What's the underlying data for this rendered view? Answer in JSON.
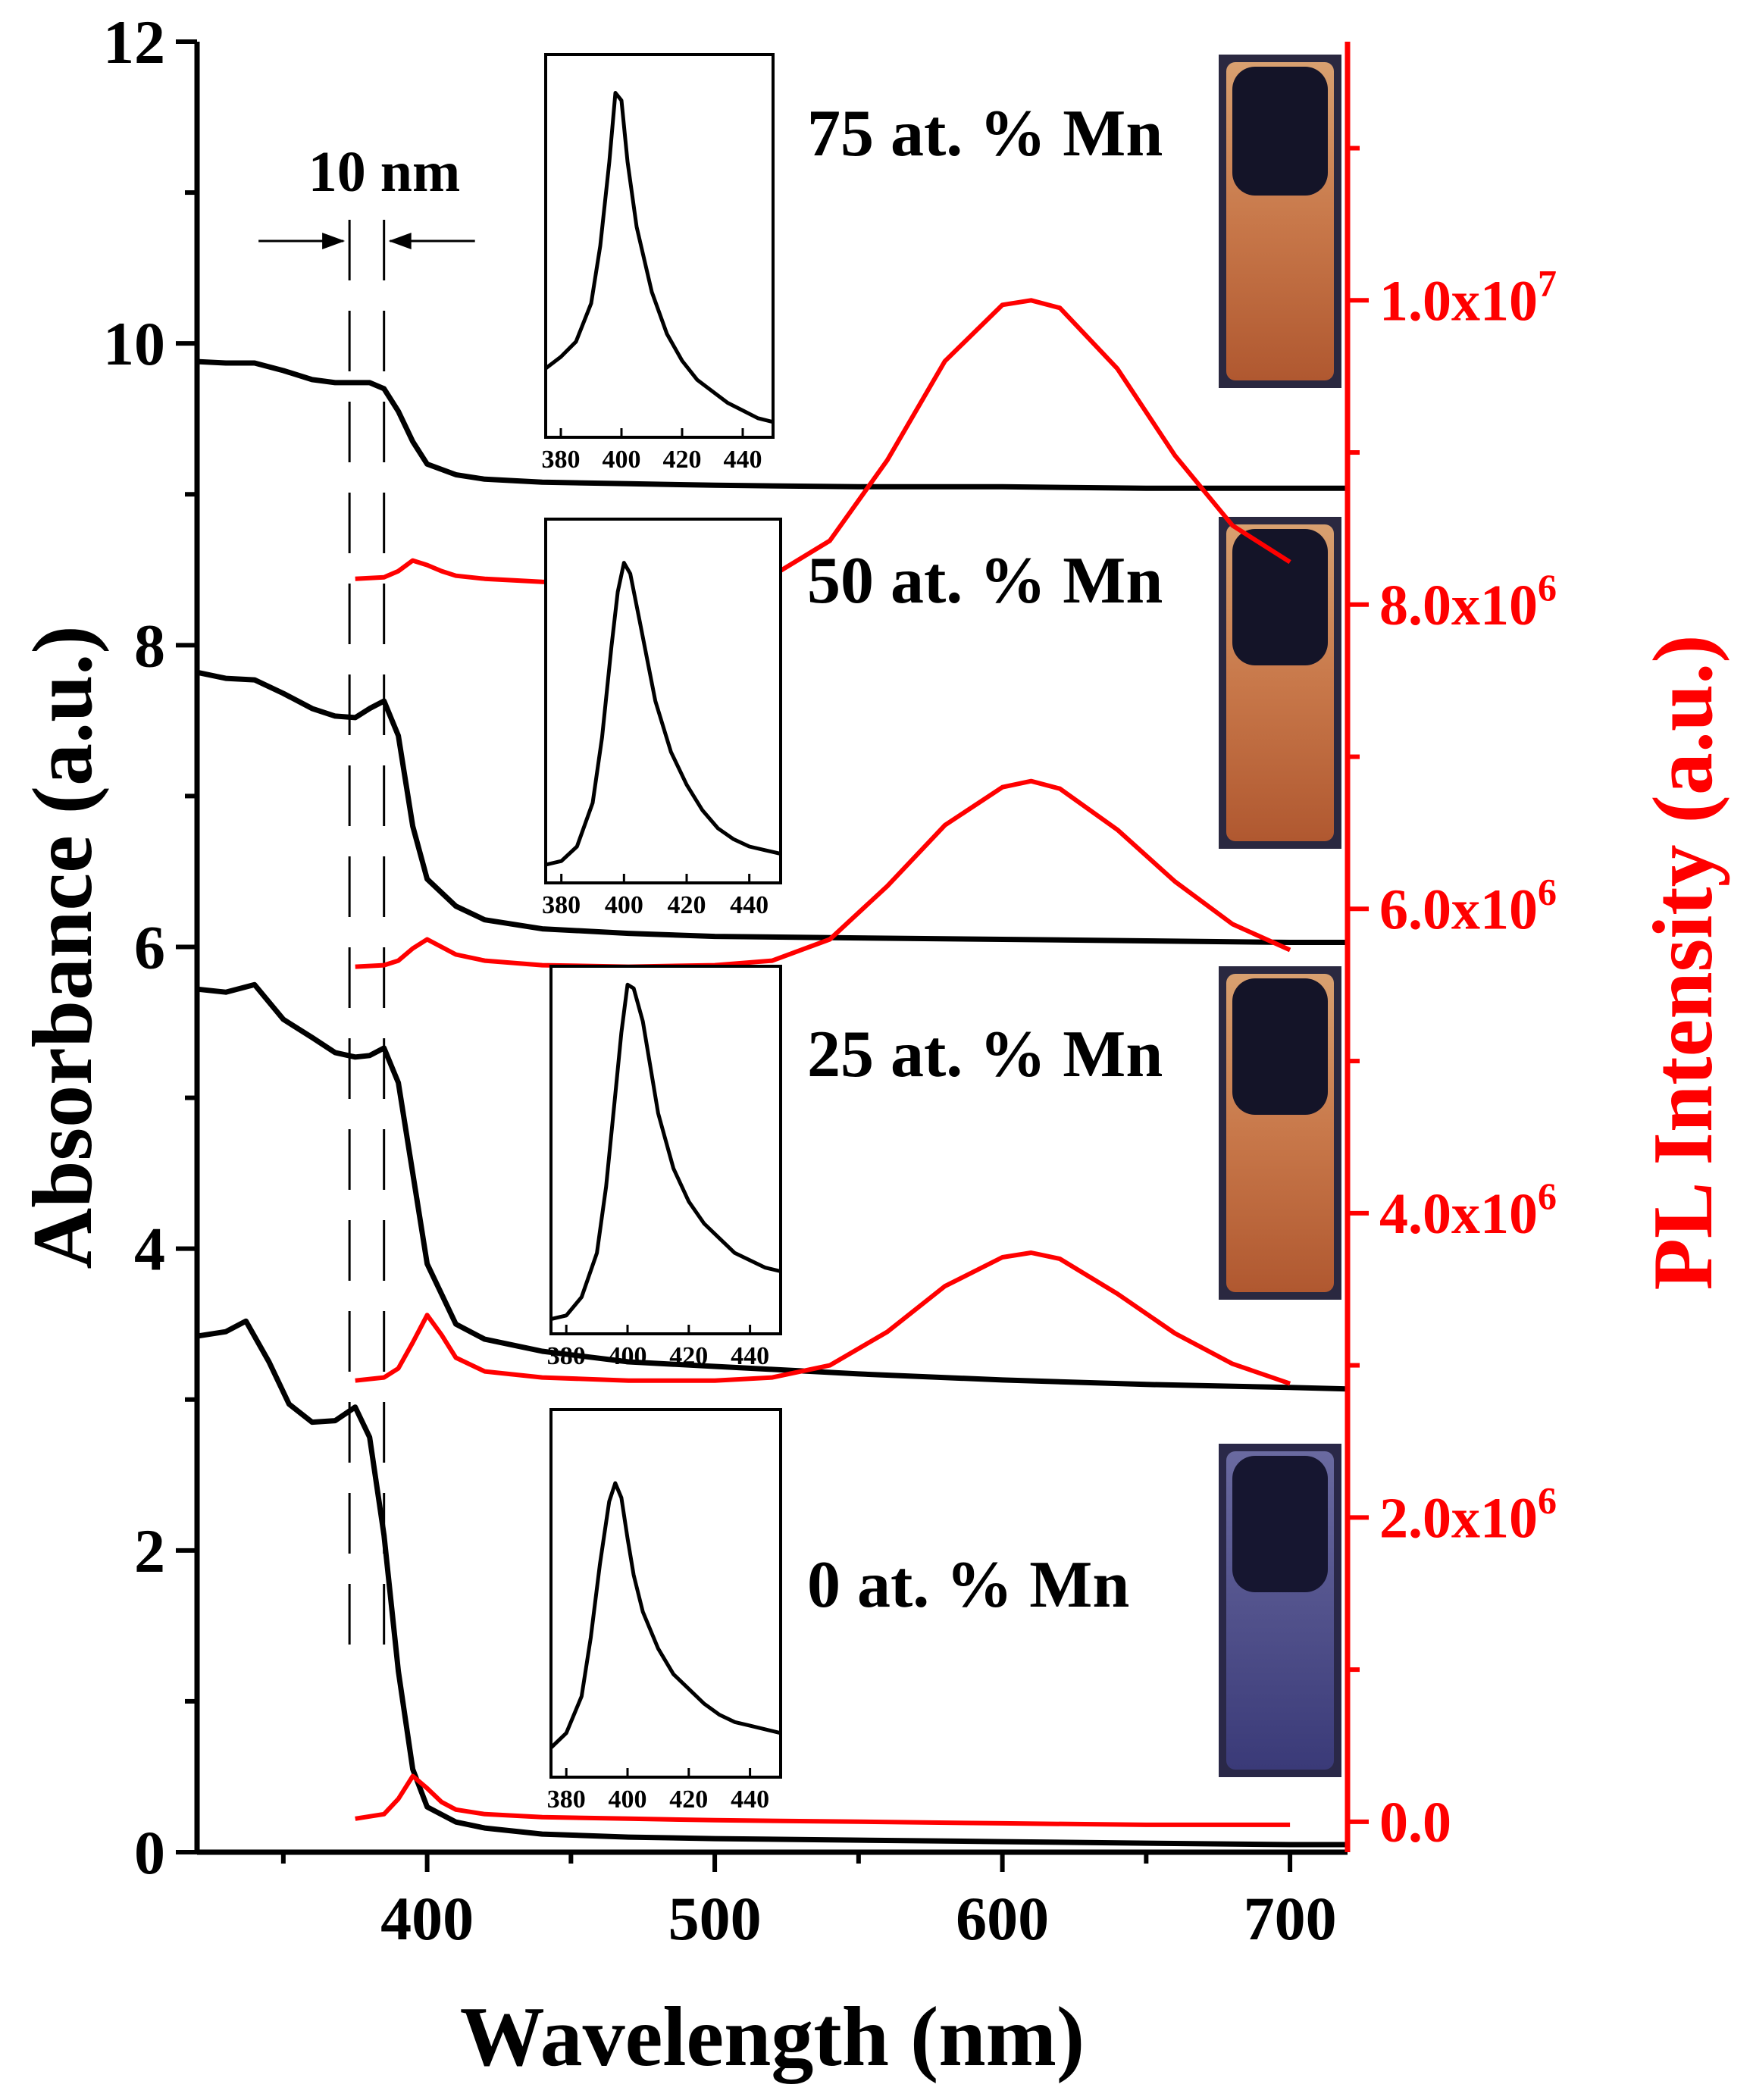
{
  "chart_data": {
    "type": "line",
    "xlabel": "Wavelength (nm)",
    "ylabel_left": "Absorbance (a.u.)",
    "ylabel_right": "PL Intensity (a.u.)",
    "xlim": [
      320,
      720
    ],
    "ylim_left": [
      0,
      12
    ],
    "ylim_right": [
      -200000,
      11700000
    ],
    "x_ticks": [
      400,
      500,
      600,
      700
    ],
    "x_tick_labels": [
      "400",
      "500",
      "600",
      "700"
    ],
    "y_left_ticks": [
      0,
      2,
      4,
      6,
      8,
      10,
      12
    ],
    "y_left_tick_labels": [
      "0",
      "2",
      "4",
      "6",
      "8",
      "10",
      "12"
    ],
    "y_right_ticks": [
      0,
      2000000,
      4000000,
      6000000,
      8000000,
      10000000
    ],
    "y_right_tick_labels": [
      {
        "mant": "0.0",
        "exp": ""
      },
      {
        "mant": "2.0x10",
        "exp": "6"
      },
      {
        "mant": "4.0x10",
        "exp": "6"
      },
      {
        "mant": "6.0x10",
        "exp": "6"
      },
      {
        "mant": "8.0x10",
        "exp": "6"
      },
      {
        "mant": "1.0x10",
        "exp": "7"
      }
    ],
    "colors": {
      "absorbance": "#000000",
      "pl": "#ff0000",
      "right_axis": "#ff0000"
    },
    "grid": false,
    "annotation_10nm": {
      "text": "10 nm",
      "x1": 373,
      "x2": 385
    },
    "series": [
      {
        "label": "0 at. % Mn",
        "absorbance": {
          "x": [
            320,
            330,
            337,
            345,
            352,
            360,
            368,
            375,
            380,
            385,
            390,
            395,
            400,
            410,
            420,
            440,
            470,
            500,
            550,
            600,
            650,
            700,
            720
          ],
          "y": [
            3.42,
            3.45,
            3.52,
            3.25,
            2.97,
            2.85,
            2.86,
            2.95,
            2.75,
            2.1,
            1.2,
            0.55,
            0.3,
            0.2,
            0.16,
            0.12,
            0.1,
            0.09,
            0.08,
            0.07,
            0.06,
            0.05,
            0.05
          ]
        },
        "pl": {
          "x": [
            375,
            385,
            390,
            395,
            400,
            405,
            410,
            420,
            440,
            470,
            500,
            550,
            600,
            650,
            700
          ],
          "y": [
            20000,
            50000,
            150000,
            300000,
            220000,
            130000,
            80000,
            50000,
            30000,
            20000,
            10000,
            0,
            -10000,
            -20000,
            -20000
          ]
        }
      },
      {
        "label": "25 at. % Mn",
        "absorbance": {
          "x": [
            320,
            330,
            340,
            350,
            360,
            368,
            375,
            380,
            385,
            390,
            395,
            400,
            410,
            420,
            440,
            470,
            500,
            550,
            600,
            650,
            700,
            720
          ],
          "y": [
            5.72,
            5.7,
            5.75,
            5.52,
            5.4,
            5.3,
            5.27,
            5.28,
            5.33,
            5.1,
            4.5,
            3.9,
            3.5,
            3.4,
            3.32,
            3.25,
            3.22,
            3.17,
            3.13,
            3.1,
            3.08,
            3.07
          ]
        },
        "pl": {
          "x": [
            375,
            385,
            390,
            395,
            400,
            405,
            410,
            420,
            440,
            470,
            500,
            520,
            540,
            560,
            580,
            600,
            610,
            620,
            640,
            660,
            680,
            700
          ],
          "y": [
            2900000,
            2920000,
            2980000,
            3150000,
            3330000,
            3200000,
            3050000,
            2960000,
            2920000,
            2900000,
            2900000,
            2920000,
            3000000,
            3220000,
            3520000,
            3710000,
            3740000,
            3700000,
            3470000,
            3210000,
            3010000,
            2880000
          ]
        }
      },
      {
        "label": "50 at. % Mn",
        "absorbance": {
          "x": [
            320,
            330,
            340,
            350,
            360,
            368,
            375,
            380,
            385,
            390,
            395,
            400,
            410,
            420,
            440,
            470,
            500,
            550,
            600,
            650,
            700,
            720
          ],
          "y": [
            7.82,
            7.78,
            7.77,
            7.68,
            7.58,
            7.53,
            7.52,
            7.58,
            7.63,
            7.4,
            6.8,
            6.45,
            6.27,
            6.18,
            6.12,
            6.09,
            6.07,
            6.06,
            6.05,
            6.04,
            6.03,
            6.03
          ]
        },
        "pl": {
          "x": [
            375,
            385,
            390,
            395,
            400,
            405,
            410,
            420,
            440,
            470,
            500,
            520,
            540,
            560,
            580,
            600,
            610,
            620,
            640,
            660,
            680,
            700
          ],
          "y": [
            5620000,
            5630000,
            5660000,
            5740000,
            5800000,
            5750000,
            5700000,
            5660000,
            5630000,
            5620000,
            5630000,
            5660000,
            5800000,
            6150000,
            6550000,
            6800000,
            6840000,
            6790000,
            6520000,
            6180000,
            5900000,
            5730000
          ]
        }
      },
      {
        "label": "75 at. % Mn",
        "absorbance": {
          "x": [
            320,
            330,
            340,
            350,
            360,
            368,
            375,
            380,
            385,
            390,
            395,
            400,
            410,
            420,
            440,
            470,
            500,
            550,
            600,
            650,
            700,
            720
          ],
          "y": [
            9.88,
            9.87,
            9.87,
            9.82,
            9.76,
            9.74,
            9.74,
            9.74,
            9.7,
            9.55,
            9.35,
            9.2,
            9.13,
            9.1,
            9.08,
            9.07,
            9.06,
            9.05,
            9.05,
            9.04,
            9.04,
            9.04
          ]
        },
        "pl": {
          "x": [
            375,
            385,
            390,
            395,
            400,
            405,
            410,
            420,
            440,
            470,
            500,
            520,
            540,
            560,
            580,
            600,
            610,
            620,
            640,
            660,
            680,
            700
          ],
          "y": [
            8170000,
            8180000,
            8220000,
            8290000,
            8260000,
            8220000,
            8190000,
            8170000,
            8150000,
            8140000,
            8140000,
            8190000,
            8420000,
            8950000,
            9600000,
            9970000,
            10000000,
            9950000,
            9550000,
            8980000,
            8520000,
            8280000
          ]
        }
      }
    ],
    "insets": [
      {
        "for": "75 at. % Mn",
        "xlim": [
          375,
          450
        ],
        "x_tick_labels": [
          "380",
          "400",
          "420",
          "440"
        ],
        "x": [
          375,
          380,
          385,
          390,
          393,
          396,
          398,
          400,
          402,
          405,
          410,
          415,
          420,
          425,
          430,
          435,
          440,
          445,
          450
        ],
        "y": [
          0.18,
          0.21,
          0.25,
          0.35,
          0.5,
          0.72,
          0.9,
          0.88,
          0.72,
          0.55,
          0.38,
          0.27,
          0.2,
          0.15,
          0.12,
          0.09,
          0.07,
          0.05,
          0.04
        ]
      },
      {
        "for": "50 at. % Mn",
        "xlim": [
          375,
          450
        ],
        "x_tick_labels": [
          "380",
          "400",
          "420",
          "440"
        ],
        "x": [
          375,
          380,
          385,
          390,
          393,
          396,
          398,
          400,
          402,
          405,
          410,
          415,
          420,
          425,
          430,
          435,
          440,
          445,
          450
        ],
        "y": [
          0.05,
          0.06,
          0.1,
          0.22,
          0.4,
          0.65,
          0.8,
          0.88,
          0.85,
          0.72,
          0.5,
          0.36,
          0.27,
          0.2,
          0.15,
          0.12,
          0.1,
          0.09,
          0.08
        ]
      },
      {
        "for": "25 at. % Mn",
        "xlim": [
          375,
          450
        ],
        "x_tick_labels": [
          "380",
          "400",
          "420",
          "440"
        ],
        "x": [
          375,
          380,
          385,
          390,
          393,
          396,
          398,
          400,
          402,
          405,
          410,
          415,
          420,
          425,
          430,
          435,
          440,
          445,
          450
        ],
        "y": [
          0.04,
          0.05,
          0.1,
          0.22,
          0.4,
          0.65,
          0.82,
          0.95,
          0.94,
          0.85,
          0.6,
          0.45,
          0.36,
          0.3,
          0.26,
          0.22,
          0.2,
          0.18,
          0.17
        ]
      },
      {
        "for": "0 at. % Mn",
        "xlim": [
          375,
          450
        ],
        "x_tick_labels": [
          "380",
          "400",
          "420",
          "440"
        ],
        "x": [
          375,
          380,
          385,
          388,
          391,
          394,
          396,
          398,
          400,
          402,
          405,
          410,
          415,
          420,
          425,
          430,
          435,
          440,
          445,
          450
        ],
        "y": [
          0.08,
          0.12,
          0.22,
          0.38,
          0.58,
          0.75,
          0.8,
          0.76,
          0.65,
          0.55,
          0.45,
          0.35,
          0.28,
          0.24,
          0.2,
          0.17,
          0.15,
          0.14,
          0.13,
          0.12
        ]
      }
    ]
  }
}
